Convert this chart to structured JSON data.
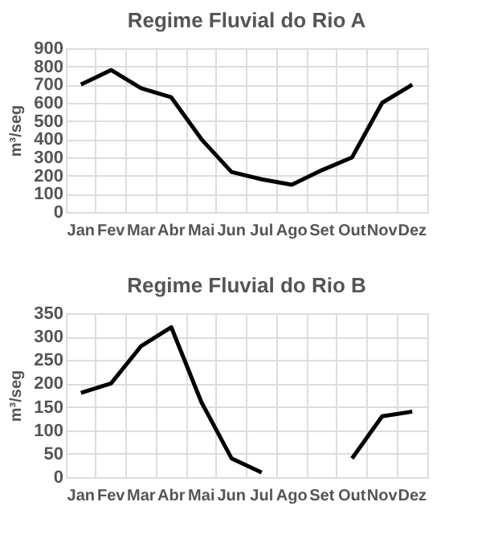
{
  "chart_data": [
    {
      "type": "line",
      "title": "Regime Fluvial do Rio A",
      "ylabel": "m³/seg",
      "categories": [
        "Jan",
        "Fev",
        "Mar",
        "Abr",
        "Mai",
        "Jun",
        "Jul",
        "Ago",
        "Set",
        "Out",
        "Nov",
        "Dez"
      ],
      "series": [
        {
          "color": "#000000",
          "values": [
            700,
            780,
            680,
            630,
            400,
            220,
            180,
            150,
            230,
            300,
            600,
            700
          ]
        }
      ],
      "ylim": [
        0,
        900
      ],
      "yticks": [
        0,
        100,
        200,
        300,
        400,
        500,
        600,
        700,
        800,
        900
      ],
      "grid": true
    },
    {
      "type": "line",
      "title": "Regime Fluvial do Rio B",
      "ylabel": "m³/seg",
      "categories": [
        "Jan",
        "Fev",
        "Mar",
        "Abr",
        "Mai",
        "Jun",
        "Jul",
        "Ago",
        "Set",
        "Out",
        "Nov",
        "Dez"
      ],
      "series": [
        {
          "color": "#000000",
          "values": [
            180,
            200,
            280,
            320,
            160,
            40,
            10,
            null,
            null,
            40,
            130,
            140
          ]
        }
      ],
      "ylim": [
        0,
        350
      ],
      "yticks": [
        0,
        50,
        100,
        150,
        200,
        250,
        300,
        350
      ],
      "grid": true
    }
  ]
}
